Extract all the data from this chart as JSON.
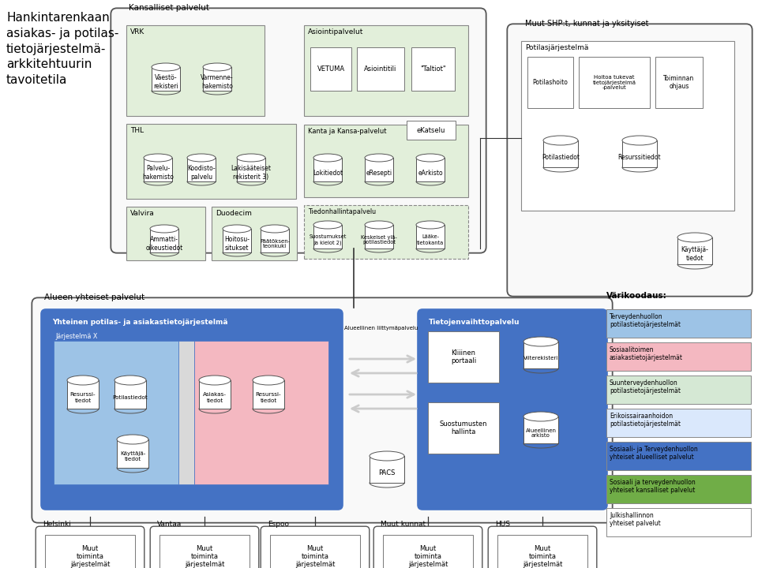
{
  "title": "Hankintarenkaan\nasiakas- ja potilas-\ntietojärjestelmä-\narkkitehtuurin\ntavoitetila",
  "bg_color": "#ffffff",
  "legend_title": "Värikoodaus:",
  "legend_items": [
    {
      "label": "Terveydenhuollon\npotilastietojärjestelmät",
      "color": "#9dc3e6"
    },
    {
      "label": "Sosiaalitoimen\nasiakastietojärjestelmät",
      "color": "#f4b8c1"
    },
    {
      "label": "Suunterveydenhuollon\npotilastietojärjestelmät",
      "color": "#d5e8d4"
    },
    {
      "label": "Erikoissairaanhoidon\npotilastietojärjestelmät",
      "color": "#dae8fc"
    },
    {
      "label": "Sosiaali- ja Terveydenhuollon\nyhteiset alueelliset palvelut",
      "color": "#4472c4"
    },
    {
      "label": "Sosiaali ja terveydenhuollon\nyhteiset kansalliset palvelut",
      "color": "#70ad47"
    },
    {
      "label": "Julkishallinnon\nyhteiset palvelut",
      "color": "#ffffff"
    }
  ]
}
